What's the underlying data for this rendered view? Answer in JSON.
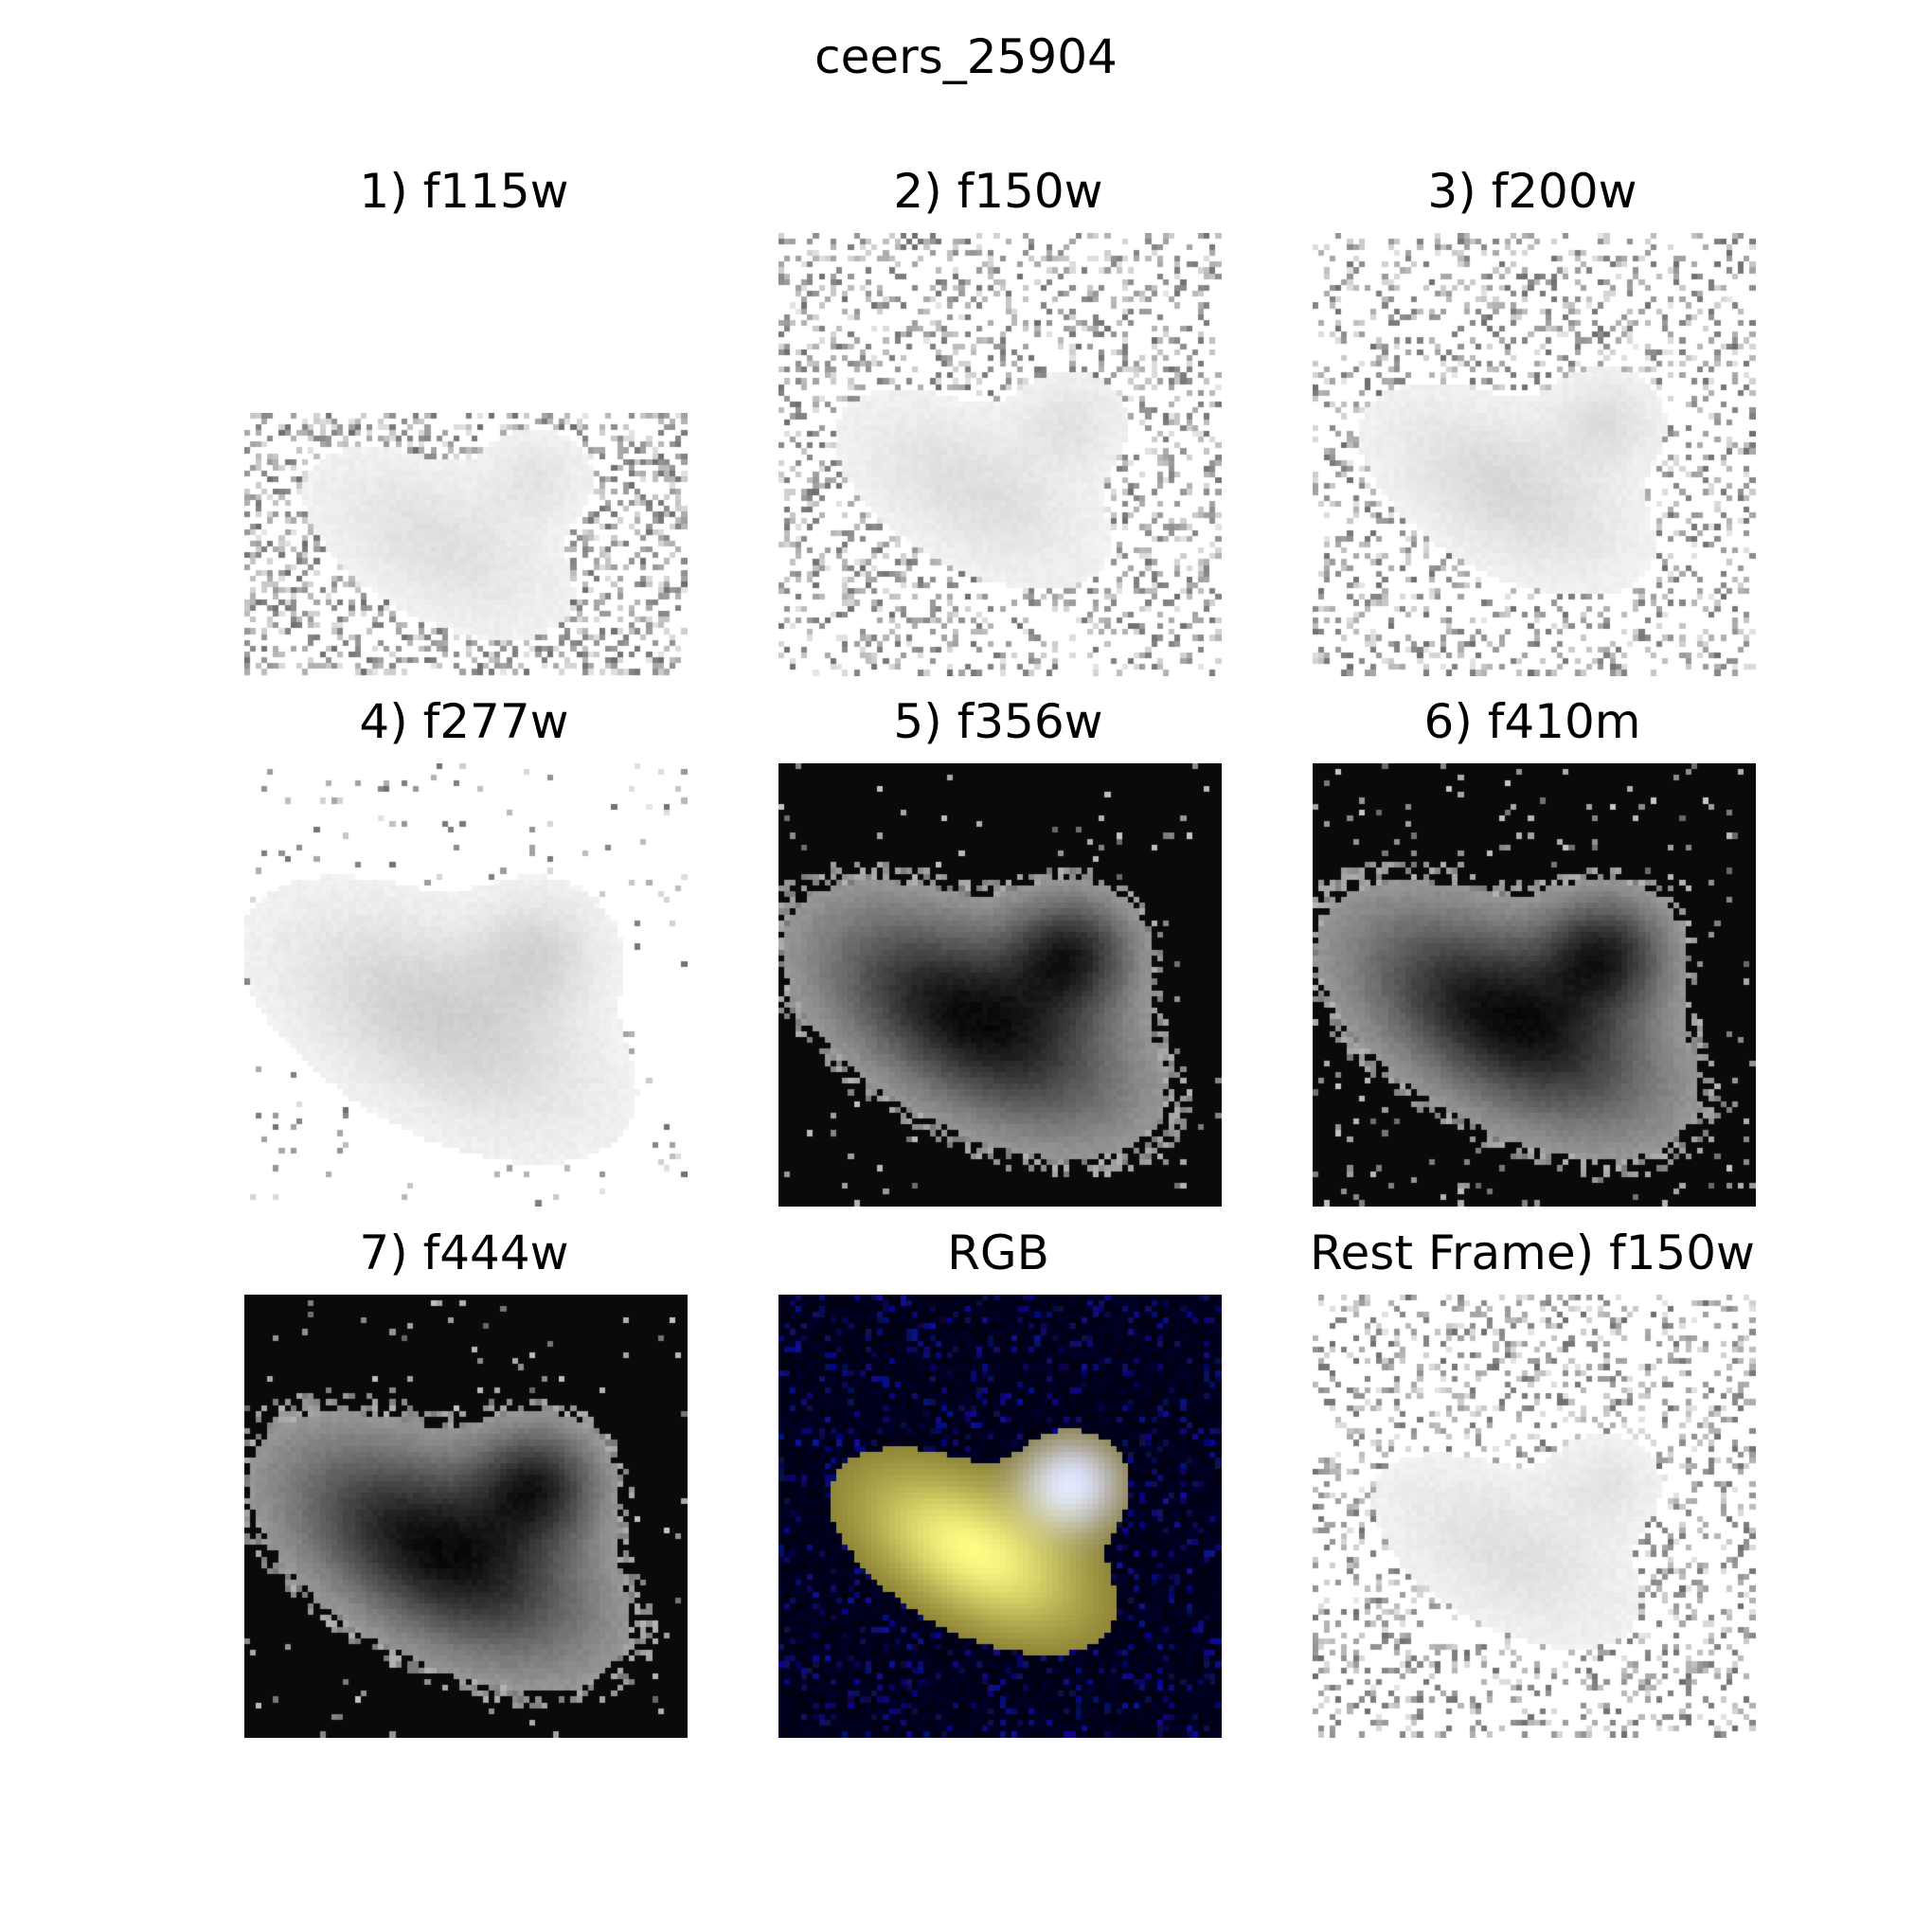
{
  "figure": {
    "title": "ceers_25904"
  },
  "panels": [
    {
      "id": "f115w",
      "title": "1) f115w",
      "mode": "inverted",
      "flux_scale": 0.55,
      "noise_density": 0.38,
      "image_shape": "cutout_rect"
    },
    {
      "id": "f150w",
      "title": "2) f150w",
      "mode": "inverted",
      "flux_scale": 0.6,
      "noise_density": 0.3,
      "image_shape": "square"
    },
    {
      "id": "f200w",
      "title": "3) f200w",
      "mode": "inverted",
      "flux_scale": 0.75,
      "noise_density": 0.26,
      "image_shape": "square"
    },
    {
      "id": "f277w",
      "title": "4) f277w",
      "mode": "inverted",
      "flux_scale": 1.0,
      "noise_density": 0.035,
      "image_shape": "square"
    },
    {
      "id": "f356w",
      "title": "5) f356w",
      "mode": "normal",
      "flux_scale": 1.0,
      "noise_density": 0.02,
      "image_shape": "square"
    },
    {
      "id": "f410m",
      "title": "6) f410m",
      "mode": "normal",
      "flux_scale": 1.0,
      "noise_density": 0.05,
      "image_shape": "square"
    },
    {
      "id": "f444w",
      "title": "7) f444w",
      "mode": "normal",
      "flux_scale": 1.0,
      "noise_density": 0.03,
      "image_shape": "square"
    },
    {
      "id": "rgb",
      "title": "RGB",
      "mode": "rgb",
      "flux_scale": 1.0,
      "noise_density": 0.15,
      "image_shape": "square"
    },
    {
      "id": "rest_f150w",
      "title": "Rest Frame) f150w",
      "mode": "inverted",
      "flux_scale": 0.55,
      "noise_density": 0.28,
      "image_shape": "square"
    }
  ]
}
